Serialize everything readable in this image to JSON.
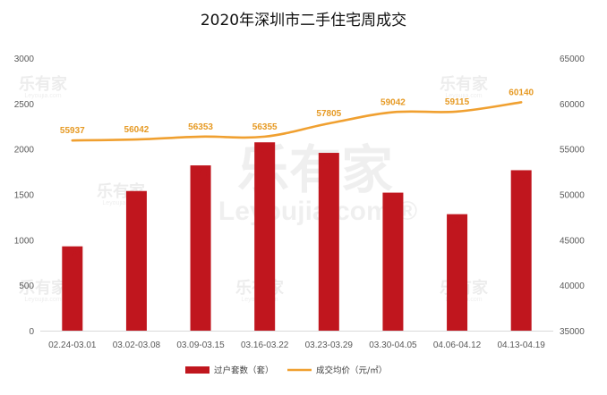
{
  "chart_data": {
    "type": "bar",
    "title": "2020年深圳市二手住宅周成交",
    "categories": [
      "02.24-03.01",
      "03.02-03.08",
      "03.09-03.15",
      "03.16-03.22",
      "03.23-03.29",
      "03.30-04.05",
      "04.06-04.12",
      "04.13-04.19"
    ],
    "series": [
      {
        "name": "过户套数（套）",
        "type": "bar",
        "axis": "left",
        "color": "#c0161e",
        "values": [
          928,
          1537,
          1819,
          2073,
          1957,
          1519,
          1282,
          1766
        ]
      },
      {
        "name": "成交均价（元/㎡）",
        "type": "line",
        "axis": "right",
        "color": "#f0a030",
        "values": [
          55937,
          56042,
          56353,
          56355,
          57805,
          59042,
          59115,
          60140
        ]
      }
    ],
    "y_left": {
      "ylim": [
        0,
        3000
      ],
      "ticks": [
        0,
        500,
        1000,
        1500,
        2000,
        2500,
        3000
      ]
    },
    "y_right": {
      "ylim": [
        35000,
        65000
      ],
      "ticks": [
        35000,
        40000,
        45000,
        50000,
        55000,
        60000,
        65000
      ]
    },
    "grid": false,
    "legend": "bottom"
  },
  "watermark": {
    "brand": "乐有家",
    "domain": "Leyoujia.com",
    "symbol": "®"
  }
}
